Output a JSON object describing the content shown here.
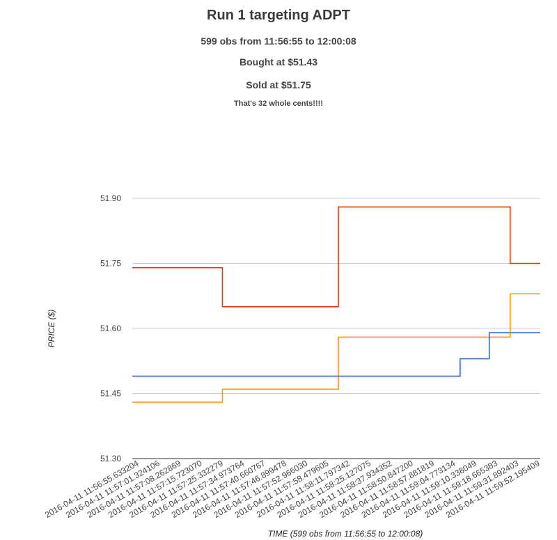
{
  "header": {
    "title": "Run 1 targeting ADPT",
    "subtitle_obs": "599 obs from 11:56:55 to 12:00:08",
    "subtitle_bought": "Bought at $51.43",
    "subtitle_sold": "Sold at $51.75",
    "subtitle_note": "That's 32 whole cents!!!!"
  },
  "chart_data": {
    "type": "line",
    "title": "Run 1 targeting ADPT",
    "xlabel": "TIME (599 obs from 11:56:55 to 12:00:08)",
    "ylabel": "PRICE ($)",
    "ylim": [
      51.3,
      51.9
    ],
    "yticks": [
      "51.30",
      "51.45",
      "51.60",
      "51.75",
      "51.90"
    ],
    "grid": true,
    "legend": "none",
    "categories": [
      "2016-04-11 11:56:55.633204",
      "2016-04-11 11:57:01.324106",
      "2016-04-11 11:57:08.262869",
      "2016-04-11 11:57:15.723070",
      "2016-04-11 11:57:25.332279",
      "2016-04-11 11:57:34.973764",
      "2016-04-11 11:57:40.660767",
      "2016-04-11 11:57:46.899478",
      "2016-04-11 11:57:52.966030",
      "2016-04-11 11:57:58.479605",
      "2016-04-11 11:58:11.797342",
      "2016-04-11 11:58:25.127075",
      "2016-04-11 11:58:37.934352",
      "2016-04-11 11:58:50.847200",
      "2016-04-11 11:58:57.881819",
      "2016-04-11 11:59:04.773134",
      "2016-04-11 11:59:10.338049",
      "2016-04-11 11:59:18.665383",
      "2016-04-11 11:59:31.892403",
      "2016-04-11 11:59:52.195409"
    ],
    "series": [
      {
        "color": "#dc3912",
        "steps": [
          {
            "x": 0.0,
            "y": 51.74
          },
          {
            "x": 4.14,
            "y": 51.65
          },
          {
            "x": 9.63,
            "y": 51.88
          },
          {
            "x": 17.77,
            "y": 51.75
          }
        ]
      },
      {
        "color": "#ff9900",
        "steps": [
          {
            "x": 0.0,
            "y": 51.43
          },
          {
            "x": 4.14,
            "y": 51.46
          },
          {
            "x": 9.63,
            "y": 51.58
          },
          {
            "x": 17.77,
            "y": 51.68
          }
        ]
      },
      {
        "color": "#3366cc",
        "steps": [
          {
            "x": 0.0,
            "y": 51.49
          },
          {
            "x": 15.4,
            "y": 51.53
          },
          {
            "x": 16.78,
            "y": 51.59
          }
        ]
      }
    ]
  }
}
